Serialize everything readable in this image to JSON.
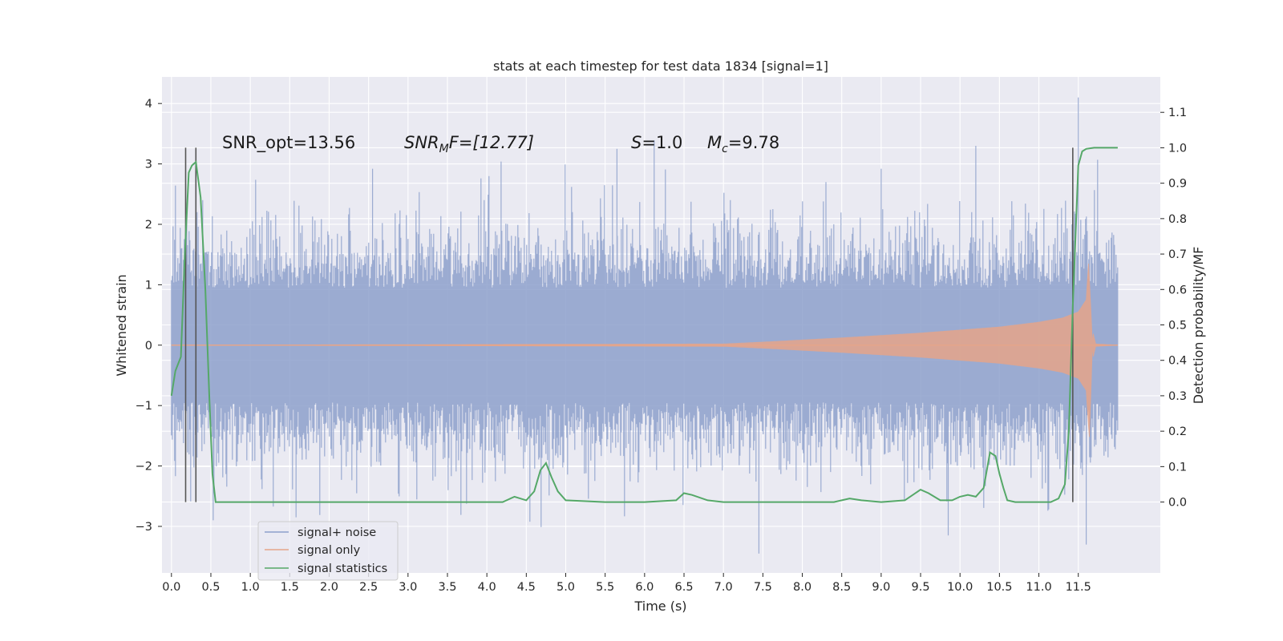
{
  "chart_data": {
    "type": "line",
    "title": "stats at each timestep for test data 1834 [signal=1]",
    "xlabel": "Time (s)",
    "ylabel": "Whitened strain",
    "y2label": "Detection probability/MF",
    "xlim": [
      -0.12,
      12.54
    ],
    "ylim": [
      -3.77,
      4.44
    ],
    "y2lim": [
      -0.2,
      1.2
    ],
    "xticks": [
      "0.0",
      "0.5",
      "1.0",
      "1.5",
      "2.0",
      "2.5",
      "3.0",
      "3.5",
      "4.0",
      "4.5",
      "5.0",
      "5.5",
      "6.0",
      "6.5",
      "7.0",
      "7.5",
      "8.0",
      "8.5",
      "9.0",
      "9.5",
      "10.0",
      "10.5",
      "11.0",
      "11.5"
    ],
    "yticks": [
      "−3",
      "−2",
      "−1",
      "0",
      "1",
      "2",
      "3",
      "4"
    ],
    "y2ticks": [
      "0.0",
      "0.1",
      "0.2",
      "0.3",
      "0.4",
      "0.5",
      "0.6",
      "0.7",
      "0.8",
      "0.9",
      "1.0",
      "1.1"
    ],
    "grid": true,
    "legend_position": "lower-left",
    "colors": {
      "background": "#eaeaf2",
      "grid": "#ffffff",
      "noise": "#8da0cb",
      "signal": "#e5a58a",
      "stats": "#55a868",
      "vlines": "#555555"
    },
    "annotations": {
      "snr_opt": "SNR_opt=13.56",
      "snr_mf_sym": "SNR",
      "snr_mf_sub": "M",
      "snr_mf_tail": "F=[12.77]",
      "s_sym": "S",
      "s_val": "=1.0",
      "mc_sym": "M",
      "mc_sub": "c",
      "mc_val": "=9.78"
    },
    "vertical_lines_x": [
      0.18,
      0.31,
      11.43
    ],
    "series": [
      {
        "name": "signal+ noise",
        "sample_rate_hz": 1024,
        "t_start": 0.0,
        "t_end": 12.0,
        "typical_amplitude": 1.5,
        "min": -3.45,
        "max": 4.1
      },
      {
        "name": "signal only",
        "envelope_t": [
          0.0,
          7.0,
          7.5,
          8.5,
          9.5,
          10.5,
          11.0,
          11.3,
          11.5,
          11.6,
          11.63,
          11.67,
          11.72,
          12.0
        ],
        "envelope_amp": [
          0.0,
          0.02,
          0.05,
          0.12,
          0.2,
          0.3,
          0.38,
          0.45,
          0.55,
          0.75,
          1.35,
          0.3,
          0.02,
          0.0
        ]
      },
      {
        "name": "signal statistics",
        "axis": "right",
        "x": [
          0.0,
          0.05,
          0.12,
          0.17,
          0.22,
          0.26,
          0.31,
          0.37,
          0.43,
          0.48,
          0.52,
          0.56,
          0.8,
          1.5,
          2.5,
          3.0,
          3.5,
          4.0,
          4.2,
          4.35,
          4.5,
          4.6,
          4.68,
          4.75,
          4.82,
          4.9,
          5.0,
          5.5,
          6.0,
          6.4,
          6.5,
          6.6,
          6.8,
          7.0,
          7.5,
          8.0,
          8.4,
          8.6,
          8.75,
          9.0,
          9.3,
          9.5,
          9.6,
          9.75,
          9.9,
          10.0,
          10.1,
          10.2,
          10.3,
          10.38,
          10.45,
          10.5,
          10.55,
          10.6,
          10.7,
          11.0,
          11.15,
          11.25,
          11.33,
          11.38,
          11.43,
          11.5,
          11.55,
          11.6,
          11.7,
          12.0
        ],
        "y": [
          0.3,
          0.37,
          0.41,
          0.7,
          0.93,
          0.95,
          0.96,
          0.86,
          0.6,
          0.3,
          0.08,
          0.0,
          0.0,
          0.0,
          0.0,
          0.0,
          0.0,
          0.0,
          0.0,
          0.015,
          0.005,
          0.03,
          0.09,
          0.11,
          0.07,
          0.03,
          0.005,
          0.0,
          0.0,
          0.005,
          0.025,
          0.02,
          0.005,
          0.0,
          0.0,
          0.0,
          0.0,
          0.01,
          0.005,
          0.0,
          0.005,
          0.035,
          0.025,
          0.005,
          0.005,
          0.015,
          0.02,
          0.015,
          0.04,
          0.14,
          0.13,
          0.08,
          0.04,
          0.005,
          0.0,
          0.0,
          0.0,
          0.01,
          0.05,
          0.2,
          0.55,
          0.95,
          0.99,
          0.997,
          1.0,
          1.0
        ]
      }
    ]
  }
}
